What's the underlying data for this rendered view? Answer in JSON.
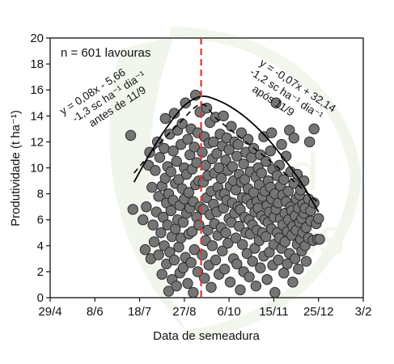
{
  "colors": {
    "point_fill": "#757575",
    "point_stroke": "#2b2b2b",
    "fit_line": "#000000",
    "divider_line": "#e8312a",
    "watermark": "#dbe9d2"
  },
  "watermark_text": [
    "Field",
    "Crops"
  ],
  "chart_data": {
    "type": "scatter",
    "title": "",
    "xlabel": "Data de semeadura",
    "ylabel": "Produtividade (t ha⁻¹)",
    "x_ticks": [
      "29/4",
      "8/6",
      "18/7",
      "27/8",
      "6/10",
      "15/11",
      "25/12",
      "3/2"
    ],
    "x_tick_days": [
      0,
      40,
      80,
      120,
      160,
      200,
      240,
      280
    ],
    "xlim_days": [
      0,
      280
    ],
    "ylim": [
      0,
      20
    ],
    "y_ticks": [
      0,
      2,
      4,
      6,
      8,
      10,
      12,
      14,
      16,
      18,
      20
    ],
    "grid": false,
    "n_label": "n = 601 lavouras",
    "divider_day": 135,
    "divider_label": "11/9",
    "fit_before": {
      "equation": "y = 0,08x - 5,66",
      "rate": "-1,3 sc ha⁻¹ dia⁻¹",
      "note": "antes de 11/9"
    },
    "fit_after": {
      "equation": "y = -0,07x + 32,14",
      "rate": "-1,2 sc ha⁻¹ dia⁻¹",
      "note": "após 11/9"
    },
    "curve_solid": [
      [
        75,
        8.9
      ],
      [
        90,
        11.2
      ],
      [
        105,
        13.2
      ],
      [
        120,
        14.8
      ],
      [
        135,
        15.5
      ],
      [
        150,
        15.2
      ],
      [
        165,
        14.5
      ],
      [
        180,
        13.5
      ],
      [
        195,
        12.2
      ],
      [
        210,
        10.6
      ],
      [
        225,
        8.8
      ],
      [
        240,
        6.6
      ]
    ],
    "curve_dashed": [
      [
        75,
        9.6
      ],
      [
        95,
        11.6
      ],
      [
        115,
        13.4
      ],
      [
        135,
        14.9
      ],
      [
        150,
        13.7
      ],
      [
        175,
        12.0
      ],
      [
        200,
        10.3
      ],
      [
        220,
        8.8
      ],
      [
        240,
        7.3
      ]
    ],
    "points": [
      [
        72,
        12.5
      ],
      [
        74,
        6.8
      ],
      [
        83,
        6.0
      ],
      [
        85,
        3.7
      ],
      [
        86,
        7.0
      ],
      [
        88,
        10.2
      ],
      [
        89,
        11.2
      ],
      [
        90,
        3.0
      ],
      [
        91,
        8.5
      ],
      [
        92,
        5.6
      ],
      [
        93,
        4.3
      ],
      [
        94,
        9.8
      ],
      [
        95,
        6.6
      ],
      [
        96,
        12.0
      ],
      [
        97,
        3.3
      ],
      [
        97,
        7.8
      ],
      [
        98,
        10.8
      ],
      [
        99,
        5.0
      ],
      [
        100,
        8.6
      ],
      [
        100,
        1.8
      ],
      [
        101,
        6.2
      ],
      [
        102,
        11.5
      ],
      [
        102,
        4.0
      ],
      [
        103,
        9.2
      ],
      [
        103,
        13.8
      ],
      [
        104,
        2.6
      ],
      [
        104,
        7.3
      ],
      [
        105,
        5.6
      ],
      [
        105,
        10.1
      ],
      [
        106,
        0.5
      ],
      [
        106,
        8.0
      ],
      [
        107,
        3.5
      ],
      [
        107,
        12.6
      ],
      [
        108,
        6.7
      ],
      [
        108,
        9.7
      ],
      [
        109,
        1.4
      ],
      [
        109,
        4.7
      ],
      [
        110,
        11.3
      ],
      [
        110,
        7.5
      ],
      [
        111,
        2.9
      ],
      [
        111,
        14.2
      ],
      [
        112,
        8.8
      ],
      [
        112,
        5.3
      ],
      [
        113,
        10.5
      ],
      [
        113,
        0.9
      ],
      [
        114,
        6.0
      ],
      [
        114,
        12.9
      ],
      [
        115,
        3.9
      ],
      [
        115,
        9.1
      ],
      [
        116,
        7.1
      ],
      [
        116,
        1.9
      ],
      [
        117,
        11.8
      ],
      [
        117,
        4.6
      ],
      [
        118,
        8.4
      ],
      [
        118,
        13.4
      ],
      [
        119,
        5.8
      ],
      [
        119,
        2.3
      ],
      [
        120,
        10.0
      ],
      [
        120,
        7.6
      ],
      [
        121,
        15.0
      ],
      [
        121,
        3.1
      ],
      [
        122,
        6.5
      ],
      [
        122,
        9.5
      ],
      [
        123,
        12.2
      ],
      [
        123,
        1.1
      ],
      [
        124,
        4.9
      ],
      [
        124,
        8.1
      ],
      [
        125,
        11.0
      ],
      [
        125,
        6.9
      ],
      [
        126,
        2.7
      ],
      [
        126,
        13.0
      ],
      [
        127,
        9.9
      ],
      [
        127,
        5.1
      ],
      [
        128,
        7.4
      ],
      [
        128,
        0.4
      ],
      [
        129,
        11.6
      ],
      [
        129,
        3.7
      ],
      [
        130,
        15.6
      ],
      [
        130,
        8.7
      ],
      [
        131,
        6.2
      ],
      [
        131,
        10.4
      ],
      [
        132,
        2.0
      ],
      [
        132,
        12.7
      ],
      [
        133,
        5.6
      ],
      [
        133,
        9.0
      ],
      [
        134,
        7.0
      ],
      [
        134,
        14.3
      ],
      [
        136,
        3.3
      ],
      [
        136,
        11.2
      ],
      [
        137,
        6.8
      ],
      [
        137,
        8.9
      ],
      [
        138,
        1.5
      ],
      [
        138,
        12.4
      ],
      [
        139,
        4.4
      ],
      [
        139,
        10.2
      ],
      [
        140,
        7.7
      ],
      [
        140,
        14.6
      ],
      [
        141,
        5.2
      ],
      [
        141,
        9.4
      ],
      [
        142,
        2.5
      ],
      [
        142,
        11.9
      ],
      [
        143,
        6.4
      ],
      [
        143,
        13.5
      ],
      [
        144,
        8.2
      ],
      [
        144,
        0.8
      ],
      [
        145,
        4.0
      ],
      [
        145,
        10.7
      ],
      [
        146,
        7.2
      ],
      [
        146,
        12.0
      ],
      [
        147,
        5.7
      ],
      [
        147,
        9.6
      ],
      [
        148,
        2.9
      ],
      [
        148,
        13.9
      ],
      [
        149,
        6.6
      ],
      [
        149,
        11.1
      ],
      [
        150,
        8.5
      ],
      [
        150,
        4.8
      ],
      [
        151,
        1.8
      ],
      [
        151,
        10.0
      ],
      [
        152,
        7.9
      ],
      [
        152,
        12.6
      ],
      [
        153,
        5.4
      ],
      [
        153,
        9.2
      ],
      [
        154,
        3.6
      ],
      [
        154,
        11.7
      ],
      [
        155,
        6.9
      ],
      [
        155,
        14.0
      ],
      [
        156,
        8.0
      ],
      [
        156,
        2.2
      ],
      [
        157,
        10.6
      ],
      [
        157,
        5.0
      ],
      [
        158,
        7.5
      ],
      [
        158,
        12.3
      ],
      [
        159,
        4.2
      ],
      [
        159,
        9.8
      ],
      [
        160,
        6.1
      ],
      [
        160,
        11.4
      ],
      [
        161,
        1.2
      ],
      [
        161,
        8.6
      ],
      [
        162,
        5.8
      ],
      [
        162,
        13.2
      ],
      [
        163,
        7.3
      ],
      [
        163,
        10.1
      ],
      [
        164,
        3.0
      ],
      [
        164,
        9.0
      ],
      [
        165,
        6.5
      ],
      [
        165,
        12.0
      ],
      [
        166,
        4.6
      ],
      [
        166,
        8.3
      ],
      [
        167,
        10.9
      ],
      [
        167,
        2.6
      ],
      [
        168,
        7.0
      ],
      [
        168,
        11.8
      ],
      [
        169,
        5.5
      ],
      [
        169,
        9.5
      ],
      [
        170,
        0.6
      ],
      [
        170,
        6.8
      ],
      [
        171,
        8.9
      ],
      [
        171,
        12.7
      ],
      [
        172,
        4.1
      ],
      [
        172,
        7.7
      ],
      [
        173,
        10.3
      ],
      [
        173,
        2.0
      ],
      [
        174,
        6.2
      ],
      [
        174,
        9.1
      ],
      [
        175,
        5.0
      ],
      [
        175,
        11.2
      ],
      [
        176,
        7.6
      ],
      [
        176,
        3.4
      ],
      [
        177,
        8.4
      ],
      [
        177,
        12.2
      ],
      [
        178,
        6.0
      ],
      [
        178,
        1.6
      ],
      [
        179,
        9.7
      ],
      [
        179,
        4.9
      ],
      [
        180,
        7.2
      ],
      [
        180,
        10.8
      ],
      [
        181,
        5.6
      ],
      [
        181,
        2.8
      ],
      [
        182,
        8.1
      ],
      [
        182,
        11.5
      ],
      [
        183,
        6.6
      ],
      [
        183,
        3.8
      ],
      [
        184,
        9.3
      ],
      [
        184,
        0.9
      ],
      [
        185,
        7.4
      ],
      [
        185,
        5.2
      ],
      [
        186,
        10.0
      ],
      [
        186,
        6.9
      ],
      [
        187,
        4.4
      ],
      [
        187,
        8.7
      ],
      [
        188,
        2.3
      ],
      [
        188,
        11.0
      ],
      [
        189,
        6.3
      ],
      [
        189,
        9.6
      ],
      [
        190,
        5.0
      ],
      [
        190,
        7.8
      ],
      [
        191,
        3.2
      ],
      [
        191,
        12.4
      ],
      [
        192,
        8.2
      ],
      [
        192,
        6.0
      ],
      [
        193,
        4.7
      ],
      [
        193,
        10.5
      ],
      [
        194,
        7.1
      ],
      [
        194,
        1.4
      ],
      [
        195,
        9.0
      ],
      [
        195,
        5.8
      ],
      [
        196,
        6.6
      ],
      [
        196,
        3.5
      ],
      [
        197,
        8.5
      ],
      [
        197,
        11.3
      ],
      [
        198,
        5.3
      ],
      [
        198,
        7.6
      ],
      [
        199,
        2.5
      ],
      [
        199,
        9.9
      ],
      [
        200,
        6.2
      ],
      [
        200,
        4.1
      ],
      [
        201,
        8.0
      ],
      [
        201,
        0.4
      ],
      [
        202,
        15.0
      ],
      [
        202,
        6.8
      ],
      [
        203,
        5.0
      ],
      [
        203,
        9.4
      ],
      [
        204,
        7.3
      ],
      [
        204,
        2.9
      ],
      [
        205,
        4.6
      ],
      [
        205,
        10.2
      ],
      [
        206,
        6.1
      ],
      [
        206,
        8.6
      ],
      [
        207,
        3.8
      ],
      [
        207,
        11.8
      ],
      [
        208,
        5.6
      ],
      [
        208,
        7.9
      ],
      [
        209,
        1.9
      ],
      [
        209,
        9.1
      ],
      [
        210,
        6.5
      ],
      [
        210,
        4.3
      ],
      [
        211,
        7.4
      ],
      [
        211,
        10.9
      ],
      [
        212,
        5.1
      ],
      [
        212,
        2.6
      ],
      [
        213,
        8.2
      ],
      [
        213,
        6.0
      ],
      [
        214,
        12.9
      ],
      [
        214,
        3.4
      ],
      [
        215,
        7.0
      ],
      [
        215,
        9.7
      ],
      [
        216,
        4.8
      ],
      [
        216,
        6.7
      ],
      [
        217,
        5.5
      ],
      [
        217,
        1.2
      ],
      [
        218,
        8.8
      ],
      [
        218,
        12.3
      ],
      [
        219,
        6.3
      ],
      [
        219,
        3.0
      ],
      [
        220,
        7.6
      ],
      [
        220,
        5.2
      ],
      [
        221,
        9.5
      ],
      [
        221,
        4.1
      ],
      [
        222,
        6.9
      ],
      [
        222,
        2.2
      ],
      [
        223,
        7.9
      ],
      [
        223,
        5.8
      ],
      [
        224,
        4.5
      ],
      [
        224,
        8.3
      ],
      [
        225,
        6.1
      ],
      [
        225,
        3.6
      ],
      [
        226,
        7.2
      ],
      [
        226,
        5.0
      ],
      [
        227,
        6.5
      ],
      [
        227,
        9.0
      ],
      [
        228,
        4.0
      ],
      [
        228,
        6.9
      ],
      [
        229,
        5.4
      ],
      [
        229,
        2.8
      ],
      [
        231,
        7.6
      ],
      [
        231,
        4.6
      ],
      [
        232,
        12.0
      ],
      [
        233,
        5.9
      ],
      [
        233,
        6.7
      ],
      [
        235,
        4.4
      ],
      [
        236,
        7.3
      ],
      [
        238,
        5.7
      ],
      [
        239,
        4.5
      ],
      [
        240,
        6.1
      ],
      [
        241,
        4.5
      ],
      [
        236,
        13.0
      ],
      [
        198,
        12.7
      ]
    ]
  }
}
